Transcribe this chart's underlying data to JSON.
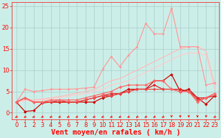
{
  "title": "",
  "xlabel": "Vent moyen/en rafales ( km/h )",
  "background_color": "#cceee8",
  "grid_color": "#aacccc",
  "xlim": [
    -0.5,
    23.5
  ],
  "ylim": [
    -1.5,
    26
  ],
  "yticks": [
    0,
    5,
    10,
    15,
    20,
    25
  ],
  "xticks": [
    0,
    1,
    2,
    3,
    4,
    5,
    6,
    7,
    8,
    9,
    10,
    11,
    12,
    13,
    14,
    15,
    16,
    17,
    18,
    19,
    20,
    21,
    22,
    23
  ],
  "lines": [
    {
      "x": [
        0,
        1,
        2,
        3,
        4,
        5,
        6,
        7,
        8,
        9,
        10,
        11,
        12,
        13,
        14,
        15,
        16,
        17,
        18,
        19,
        20,
        21,
        22,
        23
      ],
      "y": [
        2.5,
        5.5,
        5.0,
        5.2,
        5.5,
        5.5,
        5.5,
        5.6,
        5.8,
        6.0,
        10.2,
        13.2,
        10.8,
        13.5,
        15.5,
        21.0,
        18.5,
        18.5,
        24.5,
        15.5,
        15.5,
        15.5,
        6.5,
        7.0
      ],
      "color": "#ff9999",
      "lw": 0.9,
      "marker": "o",
      "ms": 2.0
    },
    {
      "x": [
        0,
        1,
        2,
        3,
        4,
        5,
        6,
        7,
        8,
        9,
        10,
        11,
        12,
        13,
        14,
        15,
        16,
        17,
        18,
        19,
        20,
        21,
        22,
        23
      ],
      "y": [
        2.5,
        3.0,
        3.0,
        3.2,
        3.5,
        3.8,
        4.2,
        4.6,
        5.0,
        5.4,
        6.5,
        7.5,
        8.0,
        9.0,
        10.0,
        11.0,
        12.0,
        13.0,
        14.0,
        15.0,
        15.5,
        15.5,
        14.5,
        6.5
      ],
      "color": "#ffbbbb",
      "lw": 0.9,
      "marker": null,
      "ms": 0
    },
    {
      "x": [
        0,
        1,
        2,
        3,
        4,
        5,
        6,
        7,
        8,
        9,
        10,
        11,
        12,
        13,
        14,
        15,
        16,
        17,
        18,
        19,
        20,
        21,
        22,
        23
      ],
      "y": [
        2.5,
        2.8,
        2.8,
        3.0,
        3.2,
        3.5,
        3.8,
        4.2,
        4.5,
        5.0,
        5.5,
        6.5,
        7.0,
        7.5,
        8.5,
        9.5,
        10.5,
        11.5,
        12.5,
        13.5,
        14.0,
        14.0,
        13.5,
        5.5
      ],
      "color": "#ffcccc",
      "lw": 0.9,
      "marker": null,
      "ms": 0
    },
    {
      "x": [
        0,
        1,
        2,
        3,
        4,
        5,
        6,
        7,
        8,
        9,
        10,
        11,
        12,
        13,
        14,
        15,
        16,
        17,
        18,
        19,
        20,
        21,
        22,
        23
      ],
      "y": [
        2.5,
        0.3,
        0.5,
        2.3,
        2.5,
        2.5,
        2.5,
        2.5,
        2.5,
        2.5,
        3.5,
        4.0,
        4.5,
        5.5,
        5.5,
        5.5,
        7.5,
        7.5,
        9.0,
        5.0,
        5.5,
        3.5,
        2.0,
        4.0
      ],
      "color": "#cc0000",
      "lw": 0.9,
      "marker": "D",
      "ms": 2.0
    },
    {
      "x": [
        0,
        1,
        2,
        3,
        4,
        5,
        6,
        7,
        8,
        9,
        10,
        11,
        12,
        13,
        14,
        15,
        16,
        17,
        18,
        19,
        20,
        21,
        22,
        23
      ],
      "y": [
        2.5,
        3.5,
        2.5,
        2.5,
        2.5,
        2.5,
        2.5,
        2.5,
        3.0,
        3.5,
        4.0,
        4.5,
        4.5,
        5.0,
        5.5,
        5.5,
        6.5,
        5.5,
        5.5,
        5.5,
        5.0,
        3.5,
        3.5,
        4.0
      ],
      "color": "#dd2222",
      "lw": 0.9,
      "marker": "D",
      "ms": 2.0
    },
    {
      "x": [
        0,
        1,
        2,
        3,
        4,
        5,
        6,
        7,
        8,
        9,
        10,
        11,
        12,
        13,
        14,
        15,
        16,
        17,
        18,
        19,
        20,
        21,
        22,
        23
      ],
      "y": [
        2.5,
        3.5,
        2.5,
        2.5,
        2.5,
        3.0,
        2.5,
        2.5,
        3.0,
        3.5,
        4.0,
        4.0,
        4.5,
        5.0,
        5.5,
        5.5,
        5.5,
        5.5,
        5.5,
        5.0,
        5.0,
        3.0,
        3.5,
        4.5
      ],
      "color": "#ee4444",
      "lw": 0.9,
      "marker": "D",
      "ms": 2.0
    },
    {
      "x": [
        0,
        1,
        2,
        3,
        4,
        5,
        6,
        7,
        8,
        9,
        10,
        11,
        12,
        13,
        14,
        15,
        16,
        17,
        18,
        19,
        20,
        21,
        22,
        23
      ],
      "y": [
        2.5,
        3.5,
        2.5,
        2.5,
        3.0,
        3.0,
        3.0,
        3.0,
        3.5,
        4.0,
        4.5,
        5.0,
        6.0,
        6.5,
        6.5,
        6.5,
        7.5,
        7.5,
        5.5,
        5.0,
        5.0,
        2.5,
        3.5,
        4.5
      ],
      "color": "#ff6666",
      "lw": 0.9,
      "marker": "D",
      "ms": 2.0
    }
  ],
  "arrow_angles_deg": [
    225,
    225,
    225,
    225,
    225,
    225,
    225,
    225,
    225,
    225,
    225,
    225,
    225,
    225,
    225,
    225,
    225,
    225,
    270,
    270,
    270,
    270,
    270,
    225
  ],
  "xlabel_fontsize": 7.5,
  "tick_fontsize": 6
}
